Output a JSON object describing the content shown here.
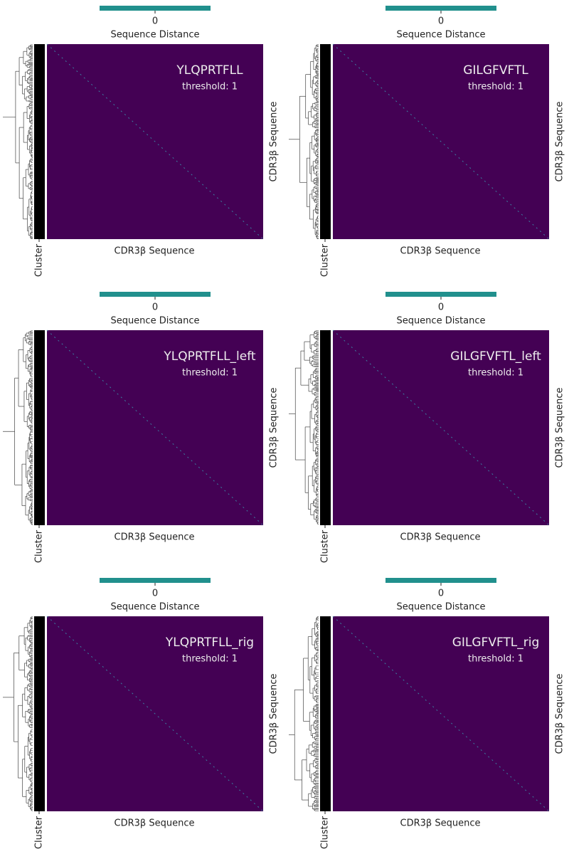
{
  "chart_data": [
    {
      "type": "clustermap",
      "title": "YLQPRTFLL",
      "annotation": "threshold: 1",
      "colorbar_label": "Sequence Distance",
      "colorbar_ticks": [
        0
      ],
      "xlabel": "CDR3β Sequence",
      "ylabel": "CDR3β Sequence",
      "row_colors_label": "Cluster",
      "color": "#440154",
      "colorbar_color": "#21908d"
    },
    {
      "type": "clustermap",
      "title": "GILGFVFTL",
      "annotation": "threshold: 1",
      "colorbar_label": "Sequence Distance",
      "colorbar_ticks": [
        0
      ],
      "xlabel": "CDR3β Sequence",
      "ylabel": "CDR3β Sequence",
      "row_colors_label": "Cluster",
      "color": "#440154",
      "colorbar_color": "#21908d"
    },
    {
      "type": "clustermap",
      "title": "YLQPRTFLL_left",
      "annotation": "threshold: 1",
      "colorbar_label": "Sequence Distance",
      "colorbar_ticks": [
        0
      ],
      "xlabel": "CDR3β Sequence",
      "ylabel": "CDR3β Sequence",
      "row_colors_label": "Cluster",
      "color": "#440154",
      "colorbar_color": "#21908d"
    },
    {
      "type": "clustermap",
      "title": "GILGFVFTL_left",
      "annotation": "threshold: 1",
      "colorbar_label": "Sequence Distance",
      "colorbar_ticks": [
        0
      ],
      "xlabel": "CDR3β Sequence",
      "ylabel": "CDR3β Sequence",
      "row_colors_label": "Cluster",
      "color": "#440154",
      "colorbar_color": "#21908d"
    },
    {
      "type": "clustermap",
      "title": "YLQPRTFLL_rig",
      "annotation": "threshold: 1",
      "colorbar_label": "Sequence Distance",
      "colorbar_ticks": [
        0
      ],
      "xlabel": "CDR3β Sequence",
      "ylabel": "CDR3β Sequence",
      "row_colors_label": "Cluster",
      "color": "#440154",
      "colorbar_color": "#21908d"
    },
    {
      "type": "clustermap",
      "title": "GILGFVFTL_rig",
      "annotation": "threshold: 1",
      "colorbar_label": "Sequence Distance",
      "colorbar_ticks": [
        0
      ],
      "xlabel": "CDR3β Sequence",
      "ylabel": "CDR3β Sequence",
      "row_colors_label": "Cluster",
      "color": "#440154",
      "colorbar_color": "#21908d"
    }
  ]
}
